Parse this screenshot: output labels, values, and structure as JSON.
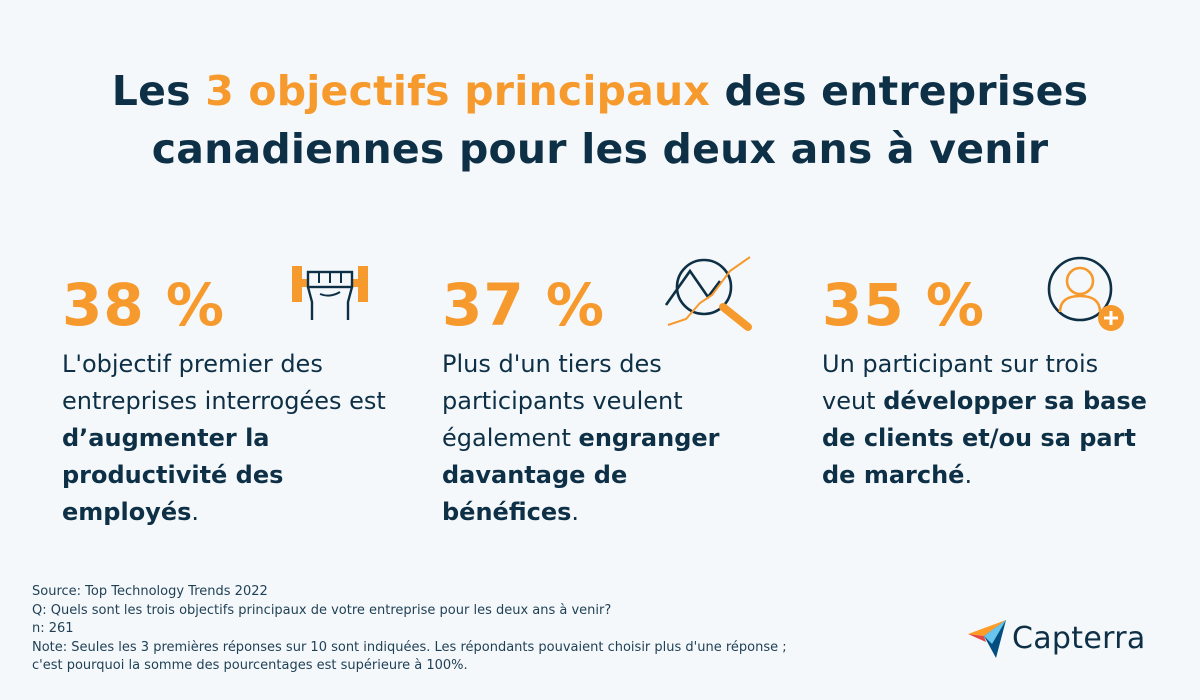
{
  "title": {
    "part1": "Les ",
    "highlight": "3 objectifs principaux",
    "part2": " des entreprises",
    "line2": "canadiennes pour les deux ans à venir"
  },
  "stats": [
    {
      "percent": "38 %",
      "icon": "weightlifting-fist-icon",
      "text_before": "L'objectif premier des entreprises interrogées est ",
      "bold": "d’augmenter la productivité des employés",
      "text_after": "."
    },
    {
      "percent": "37 %",
      "icon": "magnifier-chart-icon",
      "text_before": "Plus d'un tiers des participants veulent également ",
      "bold": "engranger davantage de bénéfices",
      "text_after": "."
    },
    {
      "percent": "35 %",
      "icon": "add-user-icon",
      "text_before": "Un participant sur trois veut ",
      "bold": "développer sa base de clients et/ou sa part de marché",
      "text_after": "."
    }
  ],
  "footer": {
    "source": "Source: Top Technology Trends 2022",
    "question": "Q: Quels sont les trois objectifs principaux de votre entreprise pour les deux ans à venir?",
    "n": "n: 261",
    "note1": "Note: Seules les 3 premières réponses sur 10 sont indiquées. Les répondants pouvaient choisir plus d'une réponse ;",
    "note2": "c'est pourquoi la somme des pourcentages est supérieure à 100%."
  },
  "brand": {
    "name": "Capterra"
  },
  "colors": {
    "accent": "#f79a2e",
    "navy": "#0e3046",
    "background": "#f4f8fa"
  }
}
